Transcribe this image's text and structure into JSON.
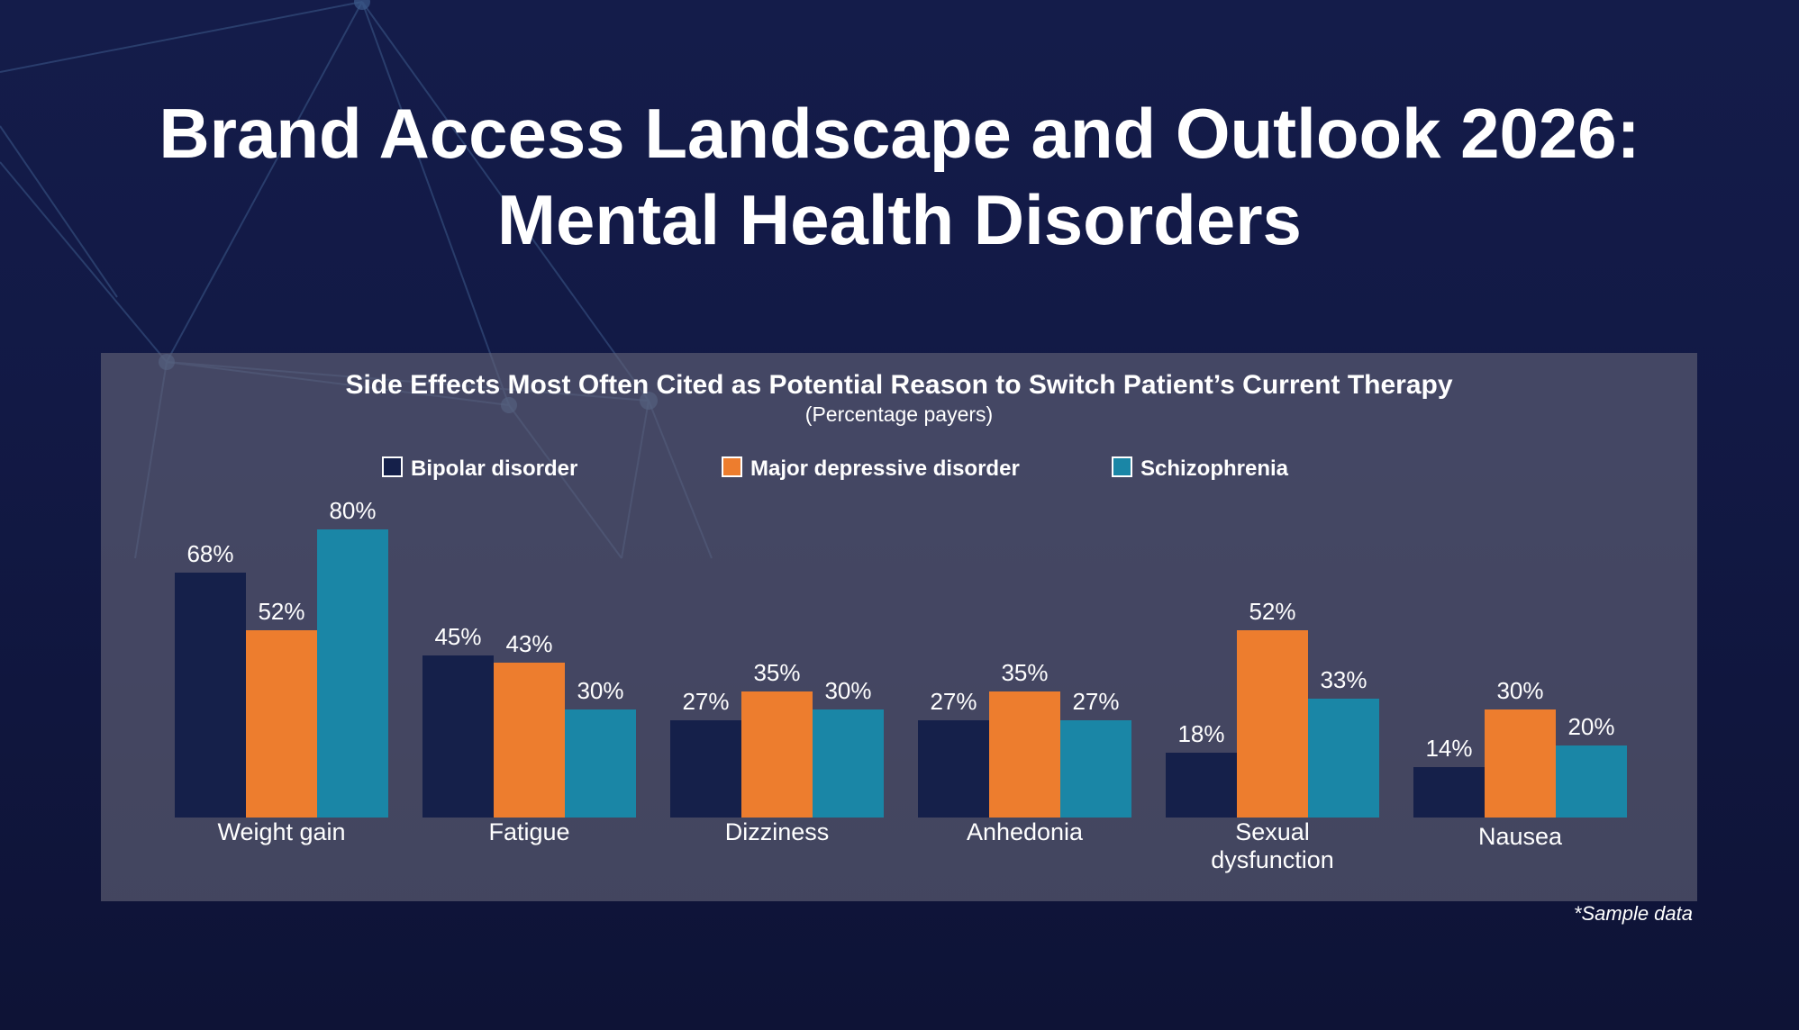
{
  "title_lines": [
    "Brand Access Landscape and Outlook 2026:",
    "Mental Health Disorders"
  ],
  "note": "*Sample data",
  "chart_data": {
    "type": "bar",
    "title": "Side Effects Most Often Cited as Potential Reason to Switch Patient’s Current Therapy",
    "subtitle": "(Percentage payers)",
    "categories": [
      "Weight gain",
      "Fatigue",
      "Dizziness",
      "Anhedonia",
      "Sexual dysfunction",
      "Nausea"
    ],
    "category_lines": [
      [
        "Weight gain"
      ],
      [
        "Fatigue"
      ],
      [
        "Dizziness"
      ],
      [
        "Anhedonia"
      ],
      [
        "Sexual",
        "dysfunction"
      ],
      [
        "Nausea"
      ]
    ],
    "series": [
      {
        "name": "Bipolar disorder",
        "color": "#15204a",
        "values": [
          68,
          45,
          27,
          27,
          18,
          14
        ],
        "labels": [
          "68%",
          "45%",
          "27%",
          "27%",
          "18%",
          "14%"
        ]
      },
      {
        "name": "Major depressive disorder",
        "color": "#ed7d2e",
        "values": [
          52,
          43,
          35,
          35,
          52,
          30
        ],
        "labels": [
          "52%",
          "43%",
          "35%",
          "35%",
          "52%",
          "30%"
        ]
      },
      {
        "name": "Schizophrenia",
        "color": "#1a86a6",
        "values": [
          80,
          30,
          30,
          27,
          33,
          20
        ],
        "labels": [
          "80%",
          "30%",
          "30%",
          "27%",
          "33%",
          "20%"
        ]
      }
    ],
    "legend_position": "top",
    "ylim": [
      0,
      100
    ],
    "grid": false
  }
}
